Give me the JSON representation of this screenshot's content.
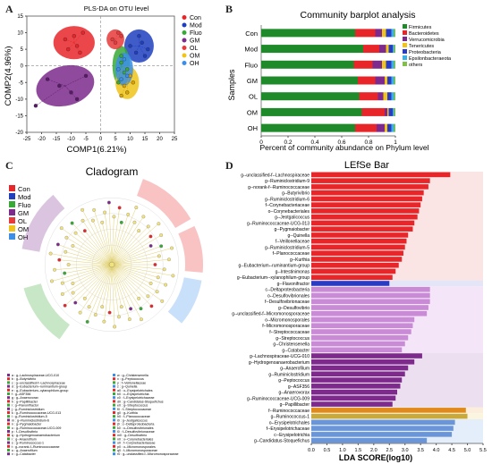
{
  "colors": {
    "Con": "#e8262a",
    "Mod": "#1f3fbf",
    "Fluo": "#37a935",
    "GM": "#7d2a8c",
    "OL": "#e83a3a",
    "OM": "#f0c419",
    "OH": "#3b8fe8",
    "firmicutes": "#1f8a2a",
    "bacteroidetes": "#e8262a",
    "verruco": "#7d2a8c",
    "teneri": "#f0c419",
    "proteo": "#2a3cc4",
    "epsilon": "#3bb0e8",
    "others": "#7fbf4a"
  },
  "panel_labels": {
    "a": "A",
    "b": "B",
    "c": "C",
    "d": "D"
  },
  "chart_data": [
    {
      "type": "scatter",
      "title": "PLS-DA on OTU level",
      "xlabel": "COMP1(6.21%)",
      "ylabel": "COMP2(4.96%)",
      "xlim": [
        -25,
        25
      ],
      "ylim": [
        -20,
        15
      ],
      "x_ticks": [
        "-25",
        "-20",
        "-15",
        "-10",
        "-5",
        "0",
        "5",
        "10",
        "15",
        "20",
        "25"
      ],
      "y_ticks": [
        "-20",
        "-15",
        "-10",
        "-5",
        "0",
        "5",
        "10",
        "15"
      ],
      "legend": [
        "Con",
        "Mod",
        "Fluo",
        "GM",
        "OL",
        "OM",
        "OH"
      ],
      "series": [
        {
          "name": "Con",
          "points": [
            [
              -12,
              8
            ],
            [
              -9,
              9
            ],
            [
              -8,
              6
            ],
            [
              -6,
              10
            ],
            [
              -11,
              5
            ],
            [
              -7,
              4
            ]
          ],
          "ellipse": [
            -9,
            7,
            7,
            5
          ]
        },
        {
          "name": "Mod",
          "points": [
            [
              10,
              6
            ],
            [
              14,
              7
            ],
            [
              12,
              4
            ],
            [
              16,
              5
            ],
            [
              13,
              9
            ],
            [
              15,
              3
            ]
          ],
          "ellipse": [
            13,
            6,
            5,
            5
          ]
        },
        {
          "name": "Fluo",
          "points": [
            [
              7,
              3
            ],
            [
              8,
              -2
            ],
            [
              6,
              -5
            ],
            [
              9,
              -1
            ],
            [
              7,
              1
            ]
          ],
          "ellipse": [
            7,
            0,
            3,
            6
          ]
        },
        {
          "name": "GM",
          "points": [
            [
              -14,
              -6
            ],
            [
              -10,
              -8
            ],
            [
              -5,
              -3
            ],
            [
              -18,
              -4
            ],
            [
              -8,
              -10
            ],
            [
              -22,
              -12
            ]
          ],
          "ellipse": [
            -12,
            -6,
            10,
            6
          ]
        },
        {
          "name": "OL",
          "points": [
            [
              4,
              8
            ],
            [
              6,
              10
            ],
            [
              5,
              7
            ],
            [
              7,
              9
            ]
          ],
          "ellipse": [
            5,
            8,
            3,
            3
          ]
        },
        {
          "name": "OM",
          "points": [
            [
              8,
              -6
            ],
            [
              10,
              -3
            ],
            [
              9,
              -8
            ],
            [
              11,
              -5
            ],
            [
              7,
              -9
            ]
          ],
          "ellipse": [
            9,
            -5,
            4,
            5
          ]
        },
        {
          "name": "OH",
          "points": [
            [
              6,
              -1
            ],
            [
              8,
              2
            ],
            [
              9,
              -3
            ],
            [
              7,
              -4
            ]
          ],
          "ellipse": [
            8,
            -1,
            3,
            5
          ]
        }
      ]
    },
    {
      "type": "bar",
      "title": "Community barplot analysis",
      "xlabel": "Percent of community abundance on Phylum level",
      "ylabel": "Samples",
      "categories": [
        "Con",
        "Mod",
        "Fluo",
        "GM",
        "OL",
        "OM",
        "OH"
      ],
      "x_ticks": [
        "0",
        "0.2",
        "0.4",
        "0.6",
        "0.8",
        "1"
      ],
      "series": [
        {
          "name": "Firmicutes",
          "values": [
            0.7,
            0.76,
            0.69,
            0.72,
            0.73,
            0.75,
            0.7
          ]
        },
        {
          "name": "Bacteroidetes",
          "values": [
            0.15,
            0.12,
            0.14,
            0.13,
            0.14,
            0.17,
            0.16
          ]
        },
        {
          "name": "Verrucomicrobia",
          "values": [
            0.05,
            0.05,
            0.07,
            0.07,
            0.04,
            0.02,
            0.06
          ]
        },
        {
          "name": "Tenericutes",
          "values": [
            0.03,
            0.02,
            0.03,
            0.02,
            0.03,
            0.01,
            0.02
          ]
        },
        {
          "name": "Proteobacteria",
          "values": [
            0.04,
            0.03,
            0.04,
            0.03,
            0.03,
            0.03,
            0.03
          ]
        },
        {
          "name": "Epsilonbacteraeota",
          "values": [
            0.02,
            0.01,
            0.02,
            0.02,
            0.02,
            0.01,
            0.02
          ]
        },
        {
          "name": "others",
          "values": [
            0.01,
            0.01,
            0.01,
            0.01,
            0.01,
            0.01,
            0.01
          ]
        }
      ]
    },
    {
      "type": "bar",
      "title": "LEfSe Bar",
      "xlabel": "LDA SCORE(log10)",
      "x_ticks": [
        "0.0",
        "0.5",
        "1.0",
        "1.5",
        "2.0",
        "2.5",
        "3.0",
        "3.5",
        "4.0",
        "4.5",
        "5.0",
        "5.5"
      ],
      "xlim": [
        0,
        5.5
      ],
      "legend": [
        "Con",
        "Mod",
        "Fluo",
        "GM",
        "OL",
        "OM",
        "OH"
      ],
      "bars": [
        {
          "label": "g--unclassified-f--Lachnospiraceae",
          "value": 4.45,
          "group": "Con"
        },
        {
          "label": "g--Ruminiclostridium-9",
          "value": 3.8,
          "group": "Con"
        },
        {
          "label": "g--norank-f--Ruminococcaceae",
          "value": 3.75,
          "group": "Con"
        },
        {
          "label": "g--Butyrivibrio",
          "value": 3.6,
          "group": "Con"
        },
        {
          "label": "g--Ruminiclostridium-6",
          "value": 3.55,
          "group": "Con"
        },
        {
          "label": "f--Corynebacteriaceae",
          "value": 3.5,
          "group": "Con"
        },
        {
          "label": "o--Corynebacteriales",
          "value": 3.45,
          "group": "Con"
        },
        {
          "label": "g--Jeotgalicoccus",
          "value": 3.4,
          "group": "Con"
        },
        {
          "label": "g--Ruminococcaceae-UCG-013",
          "value": 3.3,
          "group": "Con"
        },
        {
          "label": "g--Pygmaiobacter",
          "value": 3.25,
          "group": "Con"
        },
        {
          "label": "g--Quinella",
          "value": 3.1,
          "group": "Con"
        },
        {
          "label": "f--Veillonellaceae",
          "value": 3.05,
          "group": "Con"
        },
        {
          "label": "g--Ruminiclostridium-5",
          "value": 3.0,
          "group": "Con"
        },
        {
          "label": "f--Planococcaceae",
          "value": 2.95,
          "group": "Con"
        },
        {
          "label": "g--Kurthia",
          "value": 2.9,
          "group": "Con"
        },
        {
          "label": "g--Eubacterium--ruminantium-group",
          "value": 2.8,
          "group": "Con"
        },
        {
          "label": "g--Intestinimonas",
          "value": 2.7,
          "group": "Con"
        },
        {
          "label": "g--Eubacterium--xylanophilum-group",
          "value": 2.6,
          "group": "Con"
        },
        {
          "label": "g--Flavonifractor",
          "value": 2.5,
          "group": "Mod"
        },
        {
          "label": "c--Deltaproteobacteria",
          "value": 3.8,
          "group": "Fluo"
        },
        {
          "label": "o--Desulfovibrionales",
          "value": 3.8,
          "group": "Fluo"
        },
        {
          "label": "f--Desulfovibrionaceae",
          "value": 3.8,
          "group": "Fluo"
        },
        {
          "label": "g--Desulfovibrio",
          "value": 3.75,
          "group": "Fluo"
        },
        {
          "label": "g--unclassified-f--Micromonosporaceae",
          "value": 3.7,
          "group": "Fluo"
        },
        {
          "label": "o--Micromonosporales",
          "value": 3.3,
          "group": "Fluo"
        },
        {
          "label": "f--Micromonosporaceae",
          "value": 3.25,
          "group": "Fluo"
        },
        {
          "label": "f--Streptococcaceae",
          "value": 3.2,
          "group": "Fluo"
        },
        {
          "label": "g--Streptococcus",
          "value": 3.1,
          "group": "Fluo"
        },
        {
          "label": "g--Christensenella",
          "value": 3.0,
          "group": "Fluo"
        },
        {
          "label": "g--Catabacter",
          "value": 2.9,
          "group": "Fluo"
        },
        {
          "label": "g--Lachnospiraceae-UCG-010",
          "value": 3.55,
          "group": "GM"
        },
        {
          "label": "g--Hydrogenoanaerobacterium",
          "value": 3.3,
          "group": "GM"
        },
        {
          "label": "g--Anaerofilum",
          "value": 3.1,
          "group": "GM"
        },
        {
          "label": "g--Ruminiclostridium",
          "value": 3.0,
          "group": "GM"
        },
        {
          "label": "g--Peptococcus",
          "value": 2.9,
          "group": "GM"
        },
        {
          "label": "g--ASF356",
          "value": 2.85,
          "group": "GM"
        },
        {
          "label": "g--Anaerovorax",
          "value": 2.75,
          "group": "GM"
        },
        {
          "label": "g--Ruminococcaceae-UCG-009",
          "value": 2.7,
          "group": "GM"
        },
        {
          "label": "g--Papillibacter",
          "value": 2.6,
          "group": "GM"
        },
        {
          "label": "f--Ruminococcaceae",
          "value": 4.95,
          "group": "OL"
        },
        {
          "label": "g--Ruminococcus-1",
          "value": 5.0,
          "group": "OM"
        },
        {
          "label": "o--Erysipelotrichales",
          "value": 4.6,
          "group": "OH"
        },
        {
          "label": "f--Erysipelotrichaceae",
          "value": 4.55,
          "group": "OH"
        },
        {
          "label": "c--Erysipelotrichia",
          "value": 4.5,
          "group": "OH"
        },
        {
          "label": "g--Candidatus-Stoquefichus",
          "value": 3.7,
          "group": "OH"
        }
      ]
    }
  ],
  "cladogram": {
    "title": "Cladogram",
    "legend": [
      "Con",
      "Mod",
      "Fluo",
      "GM",
      "OL",
      "OM",
      "OH"
    ],
    "key_col1": [
      "a : g--Lachnospiraceae-UCG-010",
      "b : g--Butyrivibrio",
      "c : g--unclassified-f--Lachnospiraceae",
      "d : g--Eubacterium--ruminantium-group",
      "e : g--Eubacterium--xylanophilum-group",
      "f : g--ASF356",
      "g : g--Anaerovorax",
      "h : g--Papillibacter",
      "i : g--Flavonifractor",
      "j : g--Ruminiclostridium",
      "k : g--Ruminococcaceae-UCG-013",
      "l : g--Ruminiclostridium-5",
      "m : g--Ruminiclostridium-6",
      "n : g--Pygmaiobacter",
      "o : g--Ruminococcaceae-UCG-009",
      "p : f--Desulfovibrio",
      "q : g--Hydrogenoanaerobacterium",
      "r : g--Anaerofilum",
      "s : g--Ruminococcus-1",
      "t : g--norank-f--Ruminococcaceae",
      "u : g--Anaerofilum",
      "v : g--Catabacter"
    ],
    "key_col2": [
      "w : g--Christensenella",
      "x : g--Peptococcus",
      "y : f--Veillonellaceae",
      "z : g--Quinella",
      "a0 : o--Erysipelotrichales",
      "b0 : c--Erysipelotrichia",
      "c0 : f--Erysipelotrichaceae",
      "d0 : g--Candidatus-Stoquefichus",
      "e0 : g--Streptococcus",
      "f0 : f--Streptococcaceae",
      "g0 : g--Kurthia",
      "h0 : f--Planococcaceae",
      "i0 : g--Jeotgalicoccus",
      "j0 : c--Deltaproteobacteria",
      "k0 : o--Desulfovibrionales",
      "l0 : f--Desulfovibrionaceae",
      "m0 : g--Desulfovibrio",
      "n0 : o--Corynebacteriales",
      "o0 : f--Corynebacteriaceae",
      "p0 : o--Micromonosporales",
      "q0 : f--Micromonosporaceae",
      "r0 : g--unclassified-f--Micromonosporaceae"
    ]
  }
}
